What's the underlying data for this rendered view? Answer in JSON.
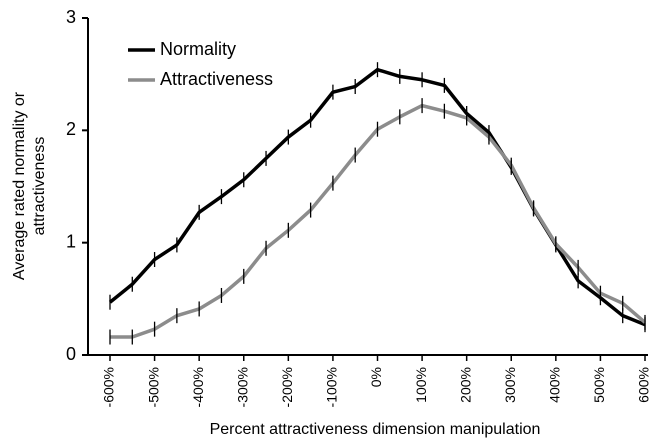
{
  "chart_data": {
    "type": "line",
    "xlabel": "Percent attractiveness dimension manipulation",
    "ylabel": [
      "Average rated normality or",
      "attractiveness"
    ],
    "x": [
      -600,
      -550,
      -500,
      -450,
      -400,
      -350,
      -300,
      -250,
      -200,
      -150,
      -100,
      -50,
      0,
      50,
      100,
      150,
      200,
      250,
      300,
      350,
      400,
      450,
      500,
      550,
      600
    ],
    "xlim": [
      -600,
      600
    ],
    "xticks": [
      {
        "value": -600,
        "label": "-600%"
      },
      {
        "value": -500,
        "label": "-500%"
      },
      {
        "value": -400,
        "label": "-400%"
      },
      {
        "value": -300,
        "label": "-300%"
      },
      {
        "value": -200,
        "label": "-200%"
      },
      {
        "value": -100,
        "label": "-100%"
      },
      {
        "value": 0,
        "label": "0%"
      },
      {
        "value": 100,
        "label": "100%"
      },
      {
        "value": 200,
        "label": "200%"
      },
      {
        "value": 300,
        "label": "300%"
      },
      {
        "value": 400,
        "label": "400%"
      },
      {
        "value": 500,
        "label": "500%"
      },
      {
        "value": 600,
        "label": "600%"
      }
    ],
    "ylim": [
      0,
      3
    ],
    "yticks": [
      0,
      1,
      2,
      3
    ],
    "grid": false,
    "legend": "upper left",
    "series": [
      {
        "name": "Normality",
        "color": "#000000",
        "values": [
          0.47,
          0.63,
          0.85,
          0.98,
          1.27,
          1.41,
          1.56,
          1.75,
          1.94,
          2.09,
          2.34,
          2.39,
          2.54,
          2.48,
          2.45,
          2.4,
          2.15,
          1.98,
          1.67,
          1.3,
          0.98,
          0.66,
          0.51,
          0.35,
          0.27
        ],
        "errors": [
          0.04,
          0.04,
          0.04,
          0.04,
          0.04,
          0.04,
          0.04,
          0.04,
          0.04,
          0.04,
          0.04,
          0.04,
          0.04,
          0.04,
          0.04,
          0.04,
          0.04,
          0.04,
          0.04,
          0.04,
          0.04,
          0.04,
          0.04,
          0.04,
          0.04
        ]
      },
      {
        "name": "Attractiveness",
        "color": "#8c8c8c",
        "values": [
          0.16,
          0.16,
          0.23,
          0.35,
          0.41,
          0.53,
          0.7,
          0.95,
          1.11,
          1.29,
          1.53,
          1.78,
          2.01,
          2.12,
          2.22,
          2.17,
          2.11,
          1.94,
          1.69,
          1.31,
          0.99,
          0.78,
          0.55,
          0.46,
          0.29
        ],
        "errors": [
          0.04,
          0.04,
          0.04,
          0.04,
          0.04,
          0.04,
          0.04,
          0.04,
          0.04,
          0.04,
          0.04,
          0.04,
          0.04,
          0.04,
          0.04,
          0.04,
          0.04,
          0.04,
          0.04,
          0.04,
          0.04,
          0.04,
          0.04,
          0.04,
          0.04
        ]
      }
    ]
  }
}
